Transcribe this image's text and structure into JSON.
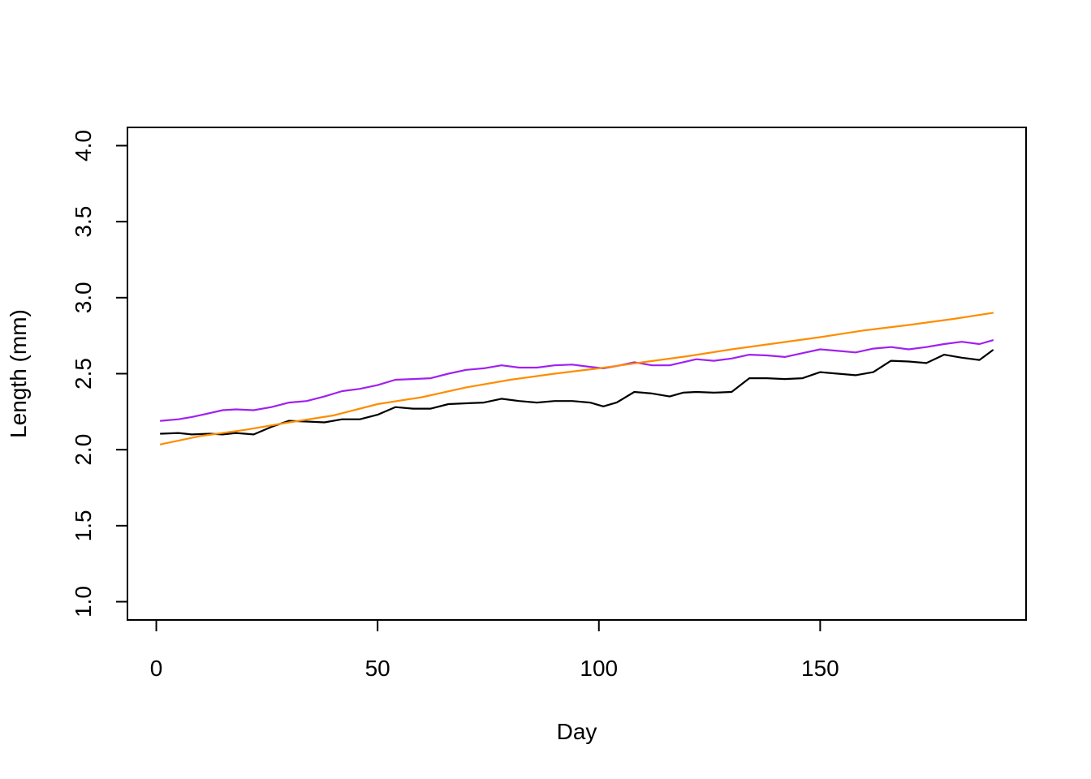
{
  "chart_data": {
    "type": "line",
    "title": "",
    "xlabel": "Day",
    "ylabel": "Length (mm)",
    "xlim": [
      1,
      189
    ],
    "ylim": [
      1.0,
      4.0
    ],
    "x_ticks": [
      0,
      50,
      100,
      150
    ],
    "x_tick_labels": [
      "0",
      "50",
      "100",
      "150"
    ],
    "y_ticks": [
      1.0,
      1.5,
      2.0,
      2.5,
      3.0,
      3.5,
      4.0
    ],
    "y_tick_labels": [
      "1.0",
      "1.5",
      "2.0",
      "2.5",
      "3.0",
      "3.5",
      "4.0"
    ],
    "grid": false,
    "legend": "none",
    "series": [
      {
        "color": "#000000",
        "x": [
          1,
          5,
          8,
          12,
          15,
          18,
          22,
          26,
          30,
          34,
          38,
          42,
          46,
          50,
          54,
          58,
          62,
          66,
          70,
          74,
          78,
          82,
          86,
          90,
          94,
          98,
          101,
          104,
          108,
          112,
          116,
          119,
          122,
          126,
          130,
          134,
          138,
          142,
          146,
          150,
          154,
          158,
          162,
          166,
          170,
          174,
          178,
          182,
          186,
          189
        ],
        "y": [
          2.105,
          2.11,
          2.1,
          2.105,
          2.1,
          2.11,
          2.1,
          2.15,
          2.19,
          2.185,
          2.18,
          2.2,
          2.2,
          2.23,
          2.28,
          2.27,
          2.27,
          2.3,
          2.305,
          2.31,
          2.335,
          2.32,
          2.31,
          2.32,
          2.32,
          2.31,
          2.285,
          2.31,
          2.38,
          2.37,
          2.35,
          2.375,
          2.38,
          2.375,
          2.38,
          2.47,
          2.47,
          2.465,
          2.47,
          2.51,
          2.5,
          2.49,
          2.51,
          2.585,
          2.58,
          2.57,
          2.625,
          2.605,
          2.59,
          2.655
        ]
      },
      {
        "color": "#A020F0",
        "x": [
          1,
          5,
          8,
          12,
          15,
          18,
          22,
          26,
          30,
          34,
          38,
          42,
          46,
          50,
          54,
          58,
          62,
          66,
          70,
          74,
          78,
          82,
          86,
          90,
          94,
          98,
          101,
          104,
          108,
          112,
          116,
          119,
          122,
          126,
          130,
          134,
          138,
          142,
          146,
          150,
          154,
          158,
          162,
          166,
          170,
          174,
          178,
          182,
          186,
          189
        ],
        "y": [
          2.19,
          2.2,
          2.215,
          2.24,
          2.26,
          2.265,
          2.26,
          2.28,
          2.31,
          2.32,
          2.35,
          2.385,
          2.4,
          2.425,
          2.46,
          2.465,
          2.47,
          2.5,
          2.525,
          2.535,
          2.555,
          2.54,
          2.54,
          2.555,
          2.56,
          2.545,
          2.535,
          2.55,
          2.575,
          2.555,
          2.555,
          2.575,
          2.595,
          2.585,
          2.6,
          2.625,
          2.62,
          2.61,
          2.635,
          2.66,
          2.65,
          2.64,
          2.665,
          2.675,
          2.66,
          2.675,
          2.695,
          2.71,
          2.695,
          2.72
        ]
      },
      {
        "color": "#FF8C00",
        "x": [
          1,
          10,
          20,
          30,
          40,
          50,
          60,
          70,
          80,
          90,
          100,
          110,
          120,
          130,
          140,
          150,
          160,
          170,
          180,
          189
        ],
        "y": [
          2.035,
          2.09,
          2.13,
          2.18,
          2.225,
          2.3,
          2.345,
          2.41,
          2.46,
          2.5,
          2.535,
          2.575,
          2.615,
          2.66,
          2.7,
          2.74,
          2.785,
          2.82,
          2.86,
          2.9
        ]
      }
    ]
  }
}
